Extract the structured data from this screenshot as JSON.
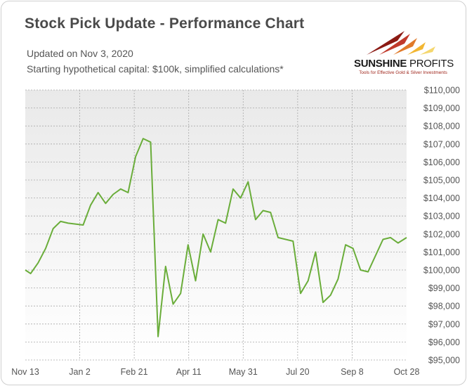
{
  "header": {
    "title": "Stock Pick Update - Performance Chart",
    "updated": "Updated on Nov 3, 2020",
    "capital_note": "Starting hypothetical capital: $100k, simplified calculations*"
  },
  "logo": {
    "name_bold": "SUNSHINE",
    "name_thin": " PROFITS",
    "tagline": "Tools for Effective Gold & Silver Investments"
  },
  "colors": {
    "line": "#6aad3a",
    "plot_top": "#e9e9e9",
    "plot_bottom": "#ffffff",
    "grid": "#a8a8a8",
    "axis_text": "#555555",
    "title": "#4a4a4a"
  },
  "chart_data": {
    "type": "line",
    "title": "Stock Pick Update - Performance Chart",
    "xlabel": "",
    "ylabel": "",
    "x_tick_labels": [
      "Nov 13",
      "Jan 2",
      "Feb 21",
      "Apr 11",
      "May 31",
      "Jul 20",
      "Sep 8",
      "Oct 28"
    ],
    "y_tick_labels": [
      "$95,000",
      "$96,000",
      "$97,000",
      "$98,000",
      "$99,000",
      "$100,000",
      "$101,000",
      "$102,000",
      "$103,000",
      "$104,000",
      "$105,000",
      "$106,000",
      "$107,000",
      "$108,000",
      "$109,000",
      "$110,000"
    ],
    "x_range": [
      "2019-11-13",
      "2020-11-03"
    ],
    "ylim": [
      95000,
      110000
    ],
    "grid": true,
    "legend": false,
    "series": [
      {
        "x": [
          "2019-11-13",
          "2019-11-18",
          "2019-11-25",
          "2019-12-02",
          "2019-12-09",
          "2019-12-16",
          "2019-12-23",
          "2020-01-06",
          "2020-01-13",
          "2020-01-20",
          "2020-01-27",
          "2020-02-03",
          "2020-02-10",
          "2020-02-17",
          "2020-02-24",
          "2020-03-02",
          "2020-03-09",
          "2020-03-16",
          "2020-03-23",
          "2020-03-30",
          "2020-04-06",
          "2020-04-13",
          "2020-04-20",
          "2020-04-27",
          "2020-05-04",
          "2020-05-11",
          "2020-05-18",
          "2020-05-25",
          "2020-06-01",
          "2020-06-08",
          "2020-06-15",
          "2020-06-22",
          "2020-06-29",
          "2020-07-06",
          "2020-07-20",
          "2020-07-27",
          "2020-08-03",
          "2020-08-10",
          "2020-08-17",
          "2020-08-24",
          "2020-08-31",
          "2020-09-07",
          "2020-09-14",
          "2020-09-21",
          "2020-09-28",
          "2020-10-12",
          "2020-10-19",
          "2020-10-26",
          "2020-11-03"
        ],
        "y": [
          100000,
          99800,
          100400,
          101200,
          102300,
          102700,
          102600,
          102500,
          103600,
          104300,
          103700,
          104200,
          104500,
          104300,
          106300,
          107300,
          107100,
          96300,
          100200,
          98100,
          98700,
          101400,
          99400,
          102000,
          101000,
          102800,
          102600,
          104500,
          104000,
          104900,
          102800,
          103300,
          103200,
          101800,
          101600,
          98700,
          99400,
          101000,
          98200,
          98600,
          99500,
          101400,
          101200,
          100000,
          99900,
          101700,
          101800,
          101500,
          101800
        ]
      }
    ]
  }
}
